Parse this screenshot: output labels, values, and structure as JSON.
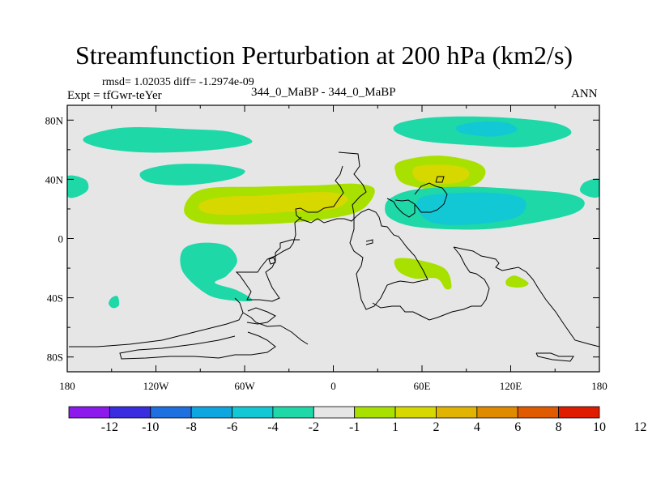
{
  "chart_data": {
    "type": "map-contour",
    "title": "Streamfunction Perturbation at 200 hPa (km2/s)",
    "stats_line": "rmsd= 1.02035 diff= -1.2974e-09",
    "experiment_label": "Expt = tfGwr-teYer",
    "case_label": "344_0_MaBP - 344_0_MaBP",
    "season": "ANN",
    "x_range": [
      -180,
      180
    ],
    "y_range": [
      -90,
      90
    ],
    "x_ticks": [
      {
        "value": -180,
        "label": "180"
      },
      {
        "value": -120,
        "label": "120W"
      },
      {
        "value": -60,
        "label": "60W"
      },
      {
        "value": 0,
        "label": "0"
      },
      {
        "value": 60,
        "label": "60E"
      },
      {
        "value": 120,
        "label": "120E"
      },
      {
        "value": 180,
        "label": "180"
      }
    ],
    "y_ticks": [
      {
        "value": 80,
        "label": "80N"
      },
      {
        "value": 40,
        "label": "40N"
      },
      {
        "value": 0,
        "label": "0"
      },
      {
        "value": -40,
        "label": "40S"
      },
      {
        "value": -80,
        "label": "80S"
      }
    ],
    "colorbar": {
      "colors": [
        "#8c1aec",
        "#3a2de0",
        "#1e6fe0",
        "#0ea6e0",
        "#12c8d4",
        "#1ed8a8",
        "#e6e6e6",
        "#a8e000",
        "#d6d800",
        "#e0b400",
        "#e08a00",
        "#e05a00",
        "#e01c00"
      ],
      "labels": [
        "-12",
        "-10",
        "-8",
        "-6",
        "-4",
        "-2",
        "-1",
        "1",
        "2",
        "4",
        "6",
        "8",
        "10",
        "12"
      ]
    },
    "features": [
      {
        "id": "nh-pacific-high",
        "level": "-2 to -1",
        "color": "#1ed8a8",
        "points": [
          [
            -165,
            70
          ],
          [
            -140,
            75
          ],
          [
            -100,
            74
          ],
          [
            -70,
            72
          ],
          [
            -55,
            65
          ],
          [
            -80,
            60
          ],
          [
            -120,
            58
          ],
          [
            -150,
            60
          ],
          [
            -168,
            65
          ]
        ]
      },
      {
        "id": "na-mid-lat-band",
        "level": "-2 to -1",
        "color": "#1ed8a8",
        "points": [
          [
            -130,
            45
          ],
          [
            -110,
            50
          ],
          [
            -80,
            50
          ],
          [
            -60,
            46
          ],
          [
            -70,
            40
          ],
          [
            -100,
            36
          ],
          [
            -125,
            38
          ]
        ]
      },
      {
        "id": "west-edge-patch",
        "level": "-2 to -1",
        "color": "#1ed8a8",
        "points": [
          [
            -180,
            42
          ],
          [
            -168,
            40
          ],
          [
            -166,
            33
          ],
          [
            -174,
            28
          ],
          [
            -180,
            29
          ]
        ]
      },
      {
        "id": "east-edge-patch",
        "level": "-2 to -1",
        "color": "#1ed8a8",
        "points": [
          [
            180,
            40
          ],
          [
            170,
            38
          ],
          [
            167,
            32
          ],
          [
            174,
            28
          ],
          [
            180,
            29
          ]
        ]
      },
      {
        "id": "atlantic-ridge-outer",
        "level": "1 to 2",
        "color": "#a8e000",
        "points": [
          [
            -98,
            27
          ],
          [
            -85,
            34
          ],
          [
            -50,
            35
          ],
          [
            -10,
            36
          ],
          [
            15,
            37
          ],
          [
            28,
            33
          ],
          [
            20,
            20
          ],
          [
            0,
            14
          ],
          [
            -40,
            10
          ],
          [
            -85,
            10
          ],
          [
            -100,
            16
          ]
        ]
      },
      {
        "id": "atlantic-ridge-core",
        "level": "2 to 4",
        "color": "#d6d800",
        "points": [
          [
            -90,
            24
          ],
          [
            -75,
            28
          ],
          [
            -50,
            29
          ],
          [
            -20,
            31
          ],
          [
            0,
            31
          ],
          [
            10,
            27
          ],
          [
            0,
            20
          ],
          [
            -30,
            18
          ],
          [
            -70,
            16
          ],
          [
            -88,
            18
          ]
        ]
      },
      {
        "id": "eurasia-high-outer",
        "level": "1 to 2",
        "color": "#a8e000",
        "points": [
          [
            45,
            52
          ],
          [
            70,
            56
          ],
          [
            95,
            52
          ],
          [
            103,
            45
          ],
          [
            95,
            36
          ],
          [
            70,
            33
          ],
          [
            48,
            37
          ],
          [
            42,
            45
          ]
        ]
      },
      {
        "id": "eurasia-high-core",
        "level": "2 to 4",
        "color": "#d6d800",
        "points": [
          [
            55,
            48
          ],
          [
            72,
            50
          ],
          [
            88,
            48
          ],
          [
            92,
            43
          ],
          [
            85,
            38
          ],
          [
            68,
            37
          ],
          [
            56,
            40
          ]
        ]
      },
      {
        "id": "arctic-low-outer",
        "level": "-2 to -1",
        "color": "#1ed8a8",
        "points": [
          [
            45,
            78
          ],
          [
            70,
            82
          ],
          [
            110,
            82
          ],
          [
            150,
            78
          ],
          [
            160,
            70
          ],
          [
            130,
            62
          ],
          [
            95,
            63
          ],
          [
            60,
            66
          ],
          [
            42,
            72
          ]
        ]
      },
      {
        "id": "arctic-low-core",
        "level": "-4 to -2",
        "color": "#12c8d4",
        "points": [
          [
            84,
            76
          ],
          [
            100,
            79
          ],
          [
            118,
            78
          ],
          [
            124,
            73
          ],
          [
            110,
            69
          ],
          [
            94,
            70
          ],
          [
            85,
            72
          ]
        ]
      },
      {
        "id": "asia-low-outer",
        "level": "-2 to -1",
        "color": "#1ed8a8",
        "points": [
          [
            40,
            28
          ],
          [
            55,
            33
          ],
          [
            90,
            35
          ],
          [
            130,
            33
          ],
          [
            160,
            30
          ],
          [
            170,
            24
          ],
          [
            160,
            16
          ],
          [
            120,
            8
          ],
          [
            90,
            6
          ],
          [
            55,
            8
          ],
          [
            38,
            14
          ],
          [
            35,
            22
          ]
        ]
      },
      {
        "id": "asia-low-core",
        "level": "-4 to -2",
        "color": "#12c8d4",
        "points": [
          [
            60,
            28
          ],
          [
            90,
            31
          ],
          [
            118,
            30
          ],
          [
            130,
            25
          ],
          [
            125,
            15
          ],
          [
            100,
            10
          ],
          [
            70,
            10
          ],
          [
            58,
            18
          ]
        ]
      },
      {
        "id": "sam-low",
        "level": "-2 to -1",
        "color": "#1ed8a8",
        "points": [
          [
            -102,
            -8
          ],
          [
            -90,
            -3
          ],
          [
            -72,
            -5
          ],
          [
            -65,
            -15
          ],
          [
            -72,
            -25
          ],
          [
            -80,
            -30
          ],
          [
            -65,
            -35
          ],
          [
            -55,
            -42
          ],
          [
            -75,
            -41
          ],
          [
            -88,
            -36
          ],
          [
            -102,
            -22
          ]
        ]
      },
      {
        "id": "s-pacific-blob",
        "level": "-2 to -1",
        "color": "#1ed8a8",
        "points": [
          [
            -150,
            -40
          ],
          [
            -146,
            -39
          ],
          [
            -145,
            -45
          ],
          [
            -149,
            -47
          ],
          [
            -152,
            -44
          ]
        ]
      },
      {
        "id": "indian-ocean-high",
        "level": "1 to 2",
        "color": "#a8e000",
        "points": [
          [
            42,
            -14
          ],
          [
            55,
            -14
          ],
          [
            75,
            -20
          ],
          [
            80,
            -32
          ],
          [
            76,
            -34
          ],
          [
            70,
            -27
          ],
          [
            55,
            -27
          ],
          [
            44,
            -22
          ]
        ]
      },
      {
        "id": "australia-east-high",
        "level": "1 to 2",
        "color": "#a8e000",
        "points": [
          [
            117,
            -28
          ],
          [
            123,
            -25
          ],
          [
            132,
            -30
          ],
          [
            127,
            -33
          ],
          [
            118,
            -32
          ]
        ]
      }
    ]
  }
}
